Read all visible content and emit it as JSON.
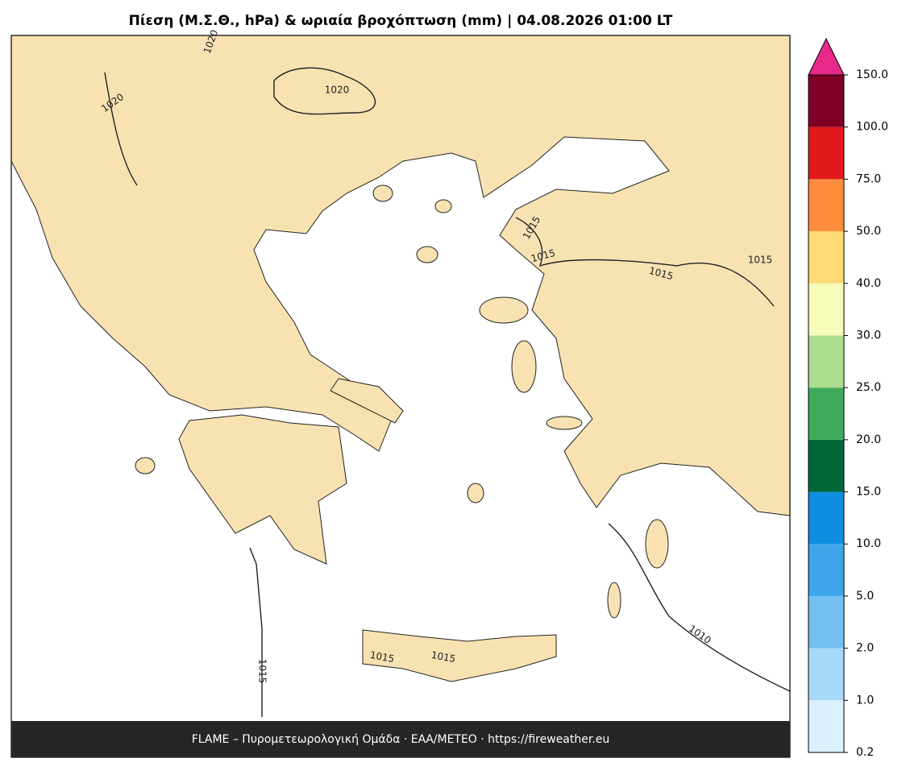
{
  "title": "Πίεση (Μ.Σ.Θ., hPa) & ωριαία βροχόπτωση (mm)  |  04.08.2026 01:00 LT",
  "footer": "FLAME – Πυρομετεωρολογική Ομάδα · ΕΑΑ/METEO · https://fireweather.eu",
  "contour_labels": [
    1020,
    1020,
    1020,
    1015,
    1015,
    1015,
    1015,
    1015,
    1015,
    1015,
    1010
  ],
  "colorbar": {
    "ticks": [
      {
        "value": 0.2,
        "label": "0.2"
      },
      {
        "value": 1,
        "label": "1.0"
      },
      {
        "value": 2,
        "label": "2.0"
      },
      {
        "value": 5,
        "label": "5.0"
      },
      {
        "value": 10,
        "label": "10.0"
      },
      {
        "value": 15,
        "label": "15.0"
      },
      {
        "value": 20,
        "label": "20.0"
      },
      {
        "value": 25,
        "label": "25.0"
      },
      {
        "value": 30,
        "label": "30.0"
      },
      {
        "value": 40,
        "label": "40.0"
      },
      {
        "value": 50,
        "label": "50.0"
      },
      {
        "value": 75,
        "label": "75.0"
      },
      {
        "value": 100,
        "label": "100.0"
      },
      {
        "value": 150,
        "label": "150.0"
      }
    ],
    "colors": [
      "#dbf0fe",
      "#a6d8f7",
      "#74c0f2",
      "#3ea6e8",
      "#0e8ee0",
      "#006837",
      "#41ab5d",
      "#addd8e",
      "#f7fbb9",
      "#fed976",
      "#fd8d3c",
      "#e31a1c",
      "#800026"
    ],
    "extend_color": "#e7298a"
  }
}
